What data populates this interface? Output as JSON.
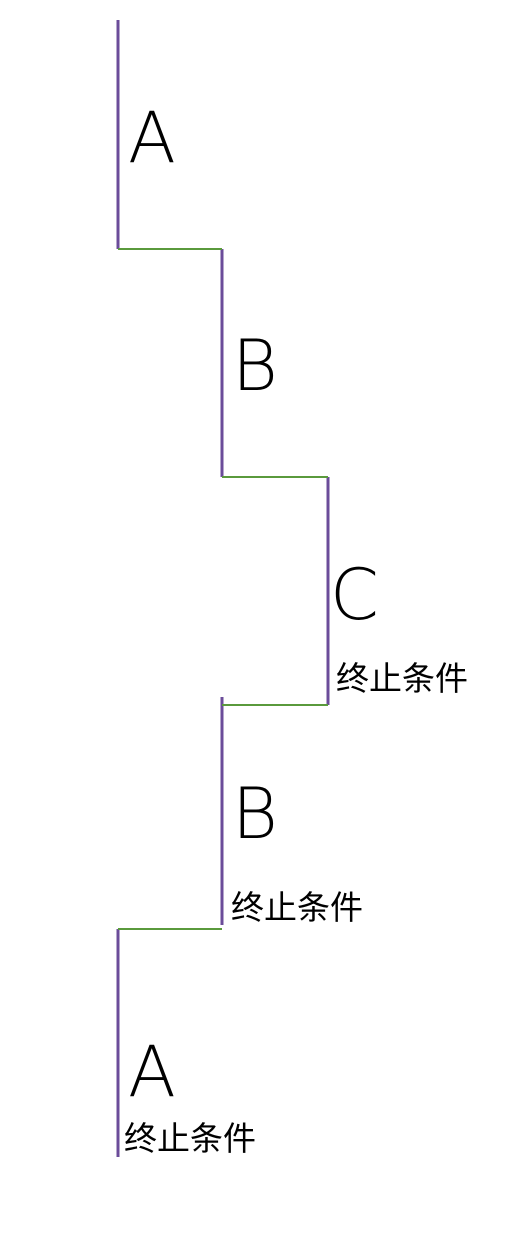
{
  "colors": {
    "vertical_line": "#6b4c9a",
    "horizontal_line": "#5a9a3c",
    "text": "#000000"
  },
  "labels": {
    "a_top": "A",
    "b_top": "B",
    "c": "C",
    "c_condition": "终止条件",
    "b_bottom": "B",
    "b_condition": "终止条件",
    "a_bottom": "A",
    "a_condition": "终止条件"
  }
}
